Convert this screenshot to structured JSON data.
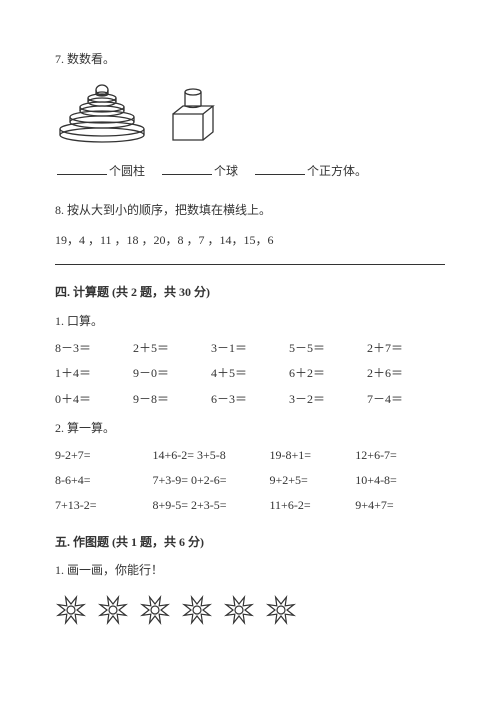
{
  "q7": {
    "head": "7. 数数看。",
    "labels": [
      "个圆柱",
      "个球",
      "个正方体。"
    ]
  },
  "q8": {
    "head": "8. 按从大到小的顺序，把数填在横线上。",
    "numbers": "19，4 ，11 ，18 ，20，8 ，7 ，14，15，6"
  },
  "sec4": {
    "title": "四. 计算题 (共 2 题，共 30 分)",
    "q1": "1. 口算。",
    "rows5": [
      [
        "8－3＝",
        "2＋5＝",
        "3－1＝",
        "5－5＝",
        "2＋7＝"
      ],
      [
        "1＋4＝",
        "9－0＝",
        "4＋5＝",
        "6＋2＝",
        "2＋6＝"
      ],
      [
        "0＋4＝",
        "9－8＝",
        "6－3＝",
        "3－2＝",
        "7－4＝"
      ]
    ],
    "q2": "2. 算一算。",
    "rows4": [
      [
        "9-2+7=",
        "14+6-2= 3+5-8",
        "19-8+1=",
        "12+6-7="
      ],
      [
        "8-6+4=",
        "7+3-9= 0+2-6=",
        "9+2+5=",
        "10+4-8="
      ],
      [
        "7+13-2=",
        "8+9-5= 2+3-5=",
        "11+6-2=",
        "9+4+7="
      ]
    ]
  },
  "sec5": {
    "title": "五. 作图题 (共 1 题，共 6 分)",
    "q1": "1. 画一画，你能行！"
  },
  "colors": {
    "stroke": "#333333",
    "bg": "#ffffff"
  },
  "star_count": 6
}
